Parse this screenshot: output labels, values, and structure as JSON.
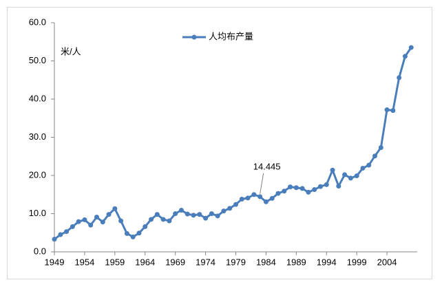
{
  "chart_data": {
    "type": "line",
    "x": [
      1949,
      1950,
      1951,
      1952,
      1953,
      1954,
      1955,
      1956,
      1957,
      1958,
      1959,
      1960,
      1961,
      1962,
      1963,
      1964,
      1965,
      1966,
      1967,
      1968,
      1969,
      1970,
      1971,
      1972,
      1973,
      1974,
      1975,
      1976,
      1977,
      1978,
      1979,
      1980,
      1981,
      1982,
      1983,
      1984,
      1985,
      1986,
      1987,
      1988,
      1989,
      1990,
      1991,
      1992,
      1993,
      1994,
      1995,
      1996,
      1997,
      1998,
      1999,
      2000,
      2001,
      2002,
      2003,
      2004,
      2005,
      2006,
      2007,
      2008
    ],
    "series": [
      {
        "name": "人均布产量",
        "color": "#4a7ebb",
        "values": [
          3.3,
          4.5,
          5.3,
          6.6,
          7.9,
          8.4,
          7.0,
          9.1,
          7.8,
          9.8,
          11.3,
          8.1,
          4.8,
          3.9,
          4.9,
          6.6,
          8.5,
          9.8,
          8.5,
          8.1,
          10.0,
          10.9,
          9.9,
          9.6,
          9.8,
          8.8,
          10.0,
          9.4,
          10.7,
          11.4,
          12.4,
          13.8,
          14.1,
          15.0,
          14.445,
          13.1,
          14.0,
          15.3,
          15.9,
          17.0,
          16.8,
          16.6,
          15.6,
          16.3,
          17.1,
          17.6,
          21.4,
          17.2,
          20.2,
          19.3,
          19.9,
          21.9,
          22.7,
          25.1,
          27.3,
          37.2,
          37.0,
          45.6,
          51.2,
          53.5
        ]
      }
    ],
    "y_label": "米/人",
    "annotation": {
      "text": "14.445",
      "x": 1983,
      "y": 14.445
    },
    "xlim": [
      1949,
      2009
    ],
    "xticks": [
      1949,
      1954,
      1959,
      1964,
      1969,
      1974,
      1979,
      1984,
      1989,
      1994,
      1999,
      2004
    ],
    "ylim": [
      0,
      60
    ],
    "yticks": [
      {
        "value": 0,
        "label": "0.0"
      },
      {
        "value": 10,
        "label": "10.0"
      },
      {
        "value": 20,
        "label": "20.0"
      },
      {
        "value": 30,
        "label": "30.0"
      },
      {
        "value": 40,
        "label": "40.0"
      },
      {
        "value": 50,
        "label": "50.0"
      },
      {
        "value": 60,
        "label": "60.0"
      }
    ],
    "legend": "top"
  }
}
